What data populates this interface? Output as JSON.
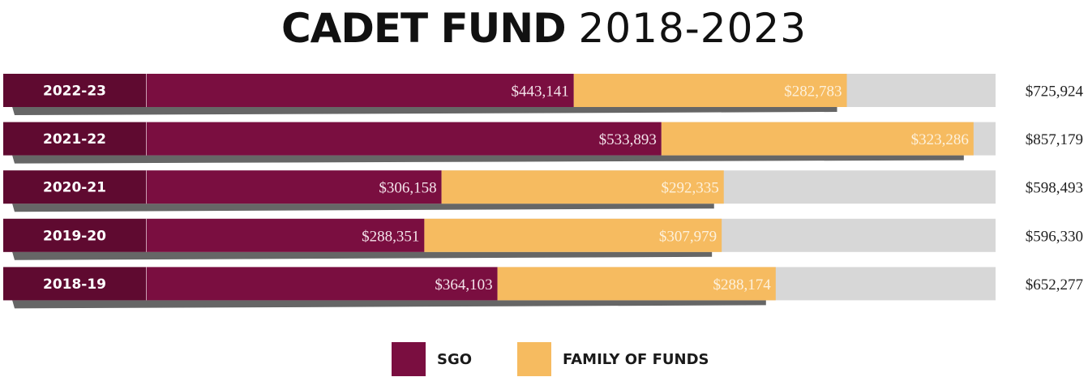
{
  "title_bold": "CADET FUND",
  "title_light": "2018-2023",
  "colors": {
    "sgo": "#7a0e40",
    "family": "#f6bb60",
    "track": "#d7d7d7",
    "label_box": "#5f0a30",
    "shadow": "#666666",
    "total_text": "#222222"
  },
  "chart_data": {
    "type": "bar",
    "orientation": "horizontal",
    "stacked": true,
    "categories": [
      "2022-23",
      "2021-22",
      "2020-21",
      "2019-20",
      "2018-19"
    ],
    "series": [
      {
        "name": "SGO",
        "values": [
          443141,
          533893,
          306158,
          288351,
          364103
        ],
        "labels": [
          "$443,141",
          "$533,893",
          "$306,158",
          "$288,351",
          "$364,103"
        ]
      },
      {
        "name": "FAMILY OF FUNDS",
        "values": [
          282783,
          323286,
          292335,
          307979,
          288174
        ],
        "labels": [
          "$282,783",
          "$323,286",
          "$292,335",
          "$307,979",
          "$288,174"
        ]
      }
    ],
    "totals": [
      "$725,924",
      "$857,179",
      "$598,493",
      "$596,330",
      "$652,277"
    ],
    "xlim": [
      0,
      880000
    ],
    "legend": "bottom-center"
  }
}
